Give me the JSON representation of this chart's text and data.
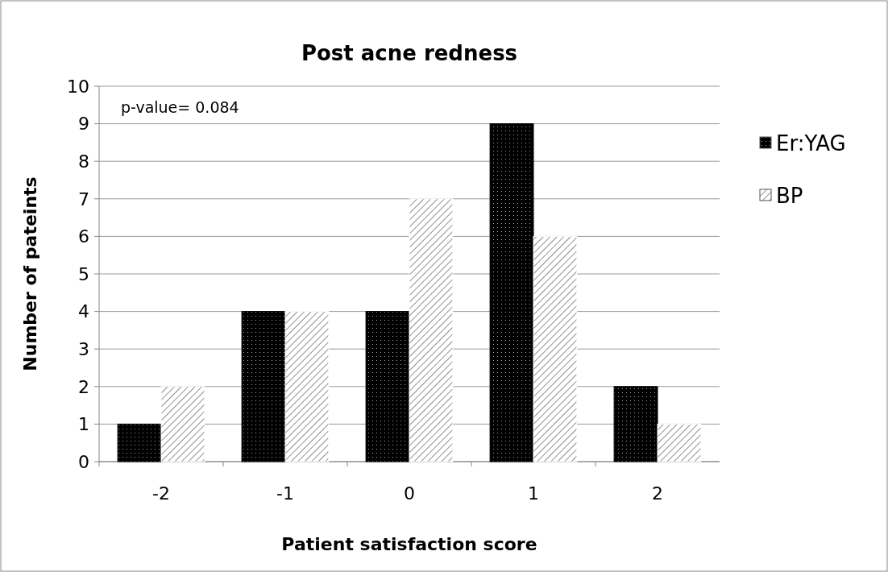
{
  "chart_data": {
    "type": "bar",
    "title": "Post acne redness",
    "xlabel": "Patient satisfaction score",
    "ylabel": "Number of pateints",
    "categories": [
      "-2",
      "-1",
      "0",
      "1",
      "2"
    ],
    "series": [
      {
        "name": "Er:YAG",
        "color": "#000000",
        "values": [
          1,
          4,
          4,
          9,
          2
        ]
      },
      {
        "name": "BP",
        "color": "#ffffff",
        "values": [
          2,
          4,
          7,
          6,
          1
        ]
      }
    ],
    "ylim": [
      0,
      10
    ],
    "yticks": [
      0,
      1,
      2,
      3,
      4,
      5,
      6,
      7,
      8,
      9,
      10
    ],
    "grid": "y",
    "legend": "right",
    "annotations": [
      "p-value= 0.084"
    ]
  }
}
